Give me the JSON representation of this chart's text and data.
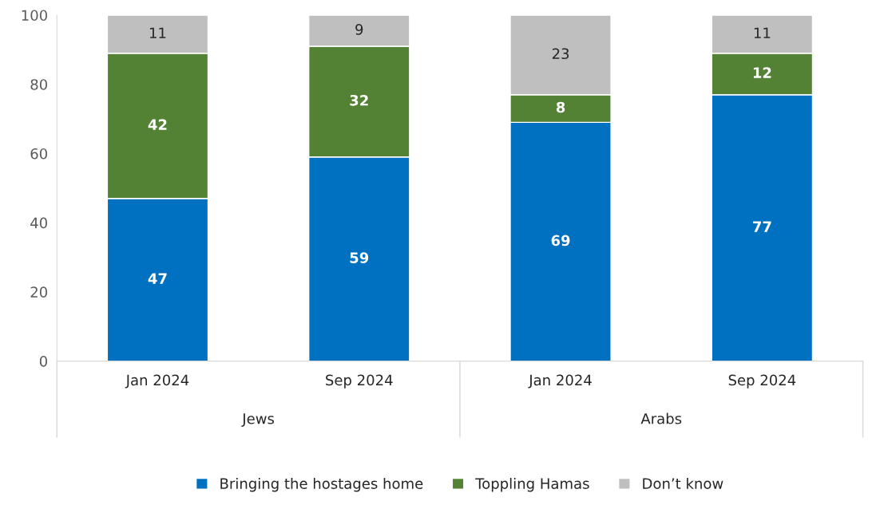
{
  "chart_data": {
    "type": "bar",
    "stacked": true,
    "categories": [
      "Jan 2024",
      "Sep 2024",
      "Jan 2024",
      "Sep 2024"
    ],
    "series": [
      {
        "name": "Bringing the hostages home",
        "color": "#0070c0",
        "values": [
          47,
          59,
          69,
          77
        ]
      },
      {
        "name": "Toppling Hamas",
        "color": "#548235",
        "values": [
          42,
          32,
          8,
          12
        ]
      },
      {
        "name": "Don’t know",
        "color": "#bfbfbf",
        "values": [
          11,
          9,
          23,
          11
        ]
      }
    ],
    "ylim": [
      0,
      100
    ],
    "yticks": [
      0,
      20,
      40,
      60,
      80,
      100
    ],
    "annotations": [
      "Jews",
      "Arabs"
    ],
    "data_labels": true,
    "grid": false,
    "legend": "bottom"
  }
}
